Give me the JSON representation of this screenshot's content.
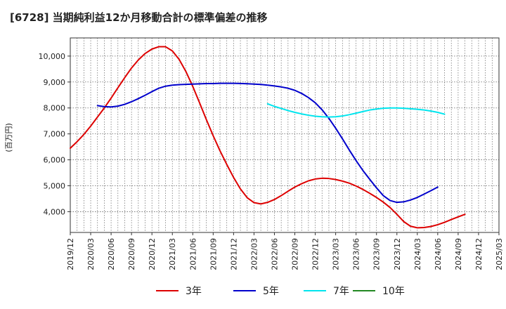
{
  "chart_data": {
    "type": "line",
    "title": "[6728]  当期純利益12か月移動合計の標準偏差の推移",
    "ylabel": "(百万円)",
    "xlabel": "",
    "ylim": [
      3200,
      10700
    ],
    "yticks": [
      4000,
      5000,
      6000,
      7000,
      8000,
      9000,
      10000
    ],
    "ytick_labels": [
      "4,000",
      "5,000",
      "6,000",
      "7,000",
      "8,000",
      "9,000",
      "10,000"
    ],
    "xticks": [
      "2019/12",
      "2020/03",
      "2020/06",
      "2020/09",
      "2020/12",
      "2021/03",
      "2021/06",
      "2021/09",
      "2021/12",
      "2022/03",
      "2022/06",
      "2022/09",
      "2022/12",
      "2023/03",
      "2023/06",
      "2023/09",
      "2023/12",
      "2024/03",
      "2024/06",
      "2024/09",
      "2024/12",
      "2025/03"
    ],
    "grid": true,
    "legend_position": "bottom",
    "series": [
      {
        "name": "3年",
        "color": "#dd0000",
        "points": [
          [
            "2019/12",
            6450
          ],
          [
            "2020/01",
            6700
          ],
          [
            "2020/02",
            6980
          ],
          [
            "2020/03",
            7300
          ],
          [
            "2020/04",
            7650
          ],
          [
            "2020/05",
            8000
          ],
          [
            "2020/06",
            8380
          ],
          [
            "2020/07",
            8780
          ],
          [
            "2020/08",
            9170
          ],
          [
            "2020/09",
            9540
          ],
          [
            "2020/10",
            9850
          ],
          [
            "2020/11",
            10100
          ],
          [
            "2020/12",
            10270
          ],
          [
            "2021/01",
            10360
          ],
          [
            "2021/02",
            10360
          ],
          [
            "2021/03",
            10200
          ],
          [
            "2021/04",
            9870
          ],
          [
            "2021/05",
            9400
          ],
          [
            "2021/06",
            8830
          ],
          [
            "2021/07",
            8200
          ],
          [
            "2021/08",
            7550
          ],
          [
            "2021/09",
            6930
          ],
          [
            "2021/10",
            6350
          ],
          [
            "2021/11",
            5820
          ],
          [
            "2021/12",
            5320
          ],
          [
            "2022/01",
            4880
          ],
          [
            "2022/02",
            4540
          ],
          [
            "2022/03",
            4350
          ],
          [
            "2022/04",
            4300
          ],
          [
            "2022/05",
            4360
          ],
          [
            "2022/06",
            4470
          ],
          [
            "2022/07",
            4620
          ],
          [
            "2022/08",
            4790
          ],
          [
            "2022/09",
            4950
          ],
          [
            "2022/10",
            5080
          ],
          [
            "2022/11",
            5190
          ],
          [
            "2022/12",
            5260
          ],
          [
            "2023/01",
            5290
          ],
          [
            "2023/02",
            5280
          ],
          [
            "2023/03",
            5240
          ],
          [
            "2023/04",
            5180
          ],
          [
            "2023/05",
            5100
          ],
          [
            "2023/06",
            4990
          ],
          [
            "2023/07",
            4860
          ],
          [
            "2023/08",
            4710
          ],
          [
            "2023/09",
            4550
          ],
          [
            "2023/10",
            4370
          ],
          [
            "2023/11",
            4160
          ],
          [
            "2023/12",
            3900
          ],
          [
            "2024/01",
            3620
          ],
          [
            "2024/02",
            3440
          ],
          [
            "2024/03",
            3380
          ],
          [
            "2024/04",
            3390
          ],
          [
            "2024/05",
            3430
          ],
          [
            "2024/06",
            3500
          ],
          [
            "2024/07",
            3590
          ],
          [
            "2024/08",
            3700
          ],
          [
            "2024/09",
            3800
          ],
          [
            "2024/10",
            3900
          ]
        ]
      },
      {
        "name": "5年",
        "color": "#0000cc",
        "points": [
          [
            "2020/04",
            8090
          ],
          [
            "2020/05",
            8050
          ],
          [
            "2020/06",
            8040
          ],
          [
            "2020/07",
            8070
          ],
          [
            "2020/08",
            8140
          ],
          [
            "2020/09",
            8240
          ],
          [
            "2020/10",
            8360
          ],
          [
            "2020/11",
            8490
          ],
          [
            "2020/12",
            8630
          ],
          [
            "2021/01",
            8760
          ],
          [
            "2021/02",
            8840
          ],
          [
            "2021/03",
            8880
          ],
          [
            "2021/04",
            8900
          ],
          [
            "2021/05",
            8910
          ],
          [
            "2021/06",
            8920
          ],
          [
            "2021/07",
            8930
          ],
          [
            "2021/08",
            8940
          ],
          [
            "2021/09",
            8940
          ],
          [
            "2021/10",
            8950
          ],
          [
            "2021/11",
            8950
          ],
          [
            "2021/12",
            8950
          ],
          [
            "2022/01",
            8945
          ],
          [
            "2022/02",
            8935
          ],
          [
            "2022/03",
            8920
          ],
          [
            "2022/04",
            8905
          ],
          [
            "2022/05",
            8880
          ],
          [
            "2022/06",
            8850
          ],
          [
            "2022/07",
            8810
          ],
          [
            "2022/08",
            8760
          ],
          [
            "2022/09",
            8680
          ],
          [
            "2022/10",
            8560
          ],
          [
            "2022/11",
            8400
          ],
          [
            "2022/12",
            8200
          ],
          [
            "2023/01",
            7930
          ],
          [
            "2023/02",
            7600
          ],
          [
            "2023/03",
            7220
          ],
          [
            "2023/04",
            6810
          ],
          [
            "2023/05",
            6380
          ],
          [
            "2023/06",
            5970
          ],
          [
            "2023/07",
            5590
          ],
          [
            "2023/08",
            5250
          ],
          [
            "2023/09",
            4920
          ],
          [
            "2023/10",
            4620
          ],
          [
            "2023/11",
            4430
          ],
          [
            "2023/12",
            4360
          ],
          [
            "2024/01",
            4380
          ],
          [
            "2024/02",
            4450
          ],
          [
            "2024/03",
            4550
          ],
          [
            "2024/04",
            4680
          ],
          [
            "2024/05",
            4810
          ],
          [
            "2024/06",
            4950
          ]
        ]
      },
      {
        "name": "7年",
        "color": "#00e5ee",
        "points": [
          [
            "2022/05",
            8160
          ],
          [
            "2022/06",
            8060
          ],
          [
            "2022/07",
            7980
          ],
          [
            "2022/08",
            7900
          ],
          [
            "2022/09",
            7830
          ],
          [
            "2022/10",
            7770
          ],
          [
            "2022/11",
            7720
          ],
          [
            "2022/12",
            7680
          ],
          [
            "2023/01",
            7660
          ],
          [
            "2023/02",
            7650
          ],
          [
            "2023/03",
            7660
          ],
          [
            "2023/04",
            7690
          ],
          [
            "2023/05",
            7740
          ],
          [
            "2023/06",
            7800
          ],
          [
            "2023/07",
            7860
          ],
          [
            "2023/08",
            7920
          ],
          [
            "2023/09",
            7960
          ],
          [
            "2023/10",
            7990
          ],
          [
            "2023/11",
            8000
          ],
          [
            "2023/12",
            8000
          ],
          [
            "2024/01",
            7990
          ],
          [
            "2024/02",
            7970
          ],
          [
            "2024/03",
            7950
          ],
          [
            "2024/04",
            7920
          ],
          [
            "2024/05",
            7880
          ],
          [
            "2024/06",
            7830
          ],
          [
            "2024/07",
            7760
          ]
        ]
      },
      {
        "name": "10年",
        "color": "#228822",
        "points": []
      }
    ]
  }
}
